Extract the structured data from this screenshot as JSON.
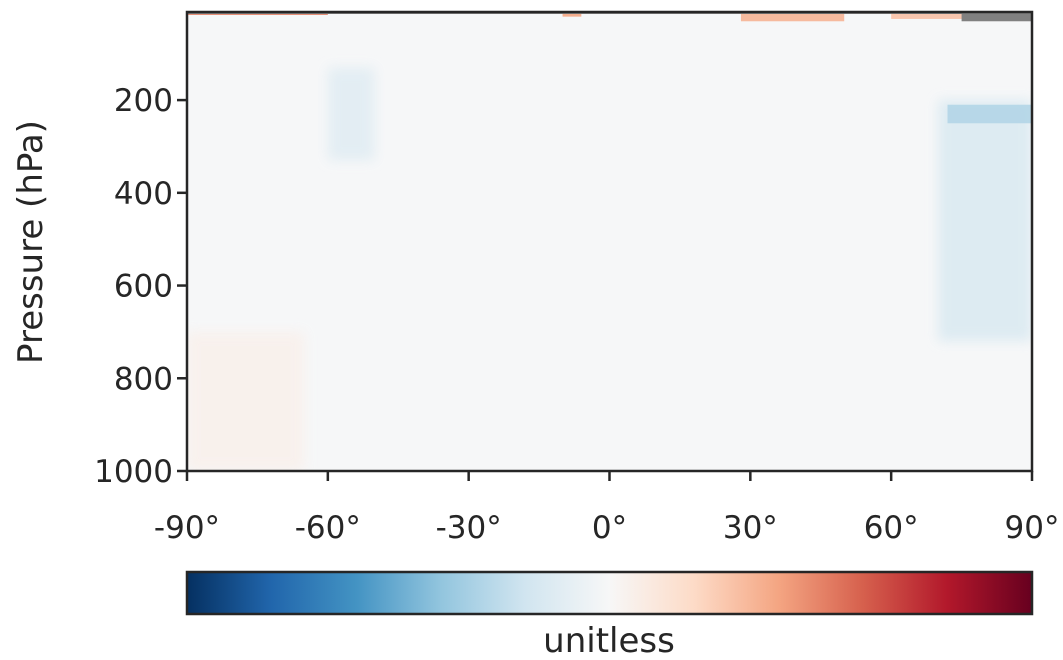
{
  "chart_data": {
    "type": "heatmap",
    "title": "",
    "xlabel": "",
    "ylabel": "Pressure (hPa)",
    "xlim": [
      -90,
      90
    ],
    "ylim": [
      1000,
      10
    ],
    "x_ticks": [
      -90,
      -60,
      -30,
      0,
      30,
      60,
      90
    ],
    "x_tick_labels": [
      "-90°",
      "-60°",
      "-30°",
      "0°",
      "30°",
      "60°",
      "90°"
    ],
    "y_ticks": [
      200,
      400,
      600,
      800,
      1000
    ],
    "y_tick_labels": [
      "200",
      "400",
      "600",
      "800",
      "1000"
    ],
    "colormap": "RdBu_r",
    "colorbar": {
      "label": "unitless",
      "orientation": "horizontal",
      "position": "bottom"
    },
    "missing_color": "#808080",
    "grid": false,
    "features": [
      {
        "lat": [
          -60,
          -50
        ],
        "p": [
          130,
          330
        ],
        "value": -0.12
      },
      {
        "lat": [
          -90,
          -65
        ],
        "p": [
          700,
          1000
        ],
        "value": 0.05
      },
      {
        "lat": [
          70,
          90
        ],
        "p": [
          200,
          720
        ],
        "value": -0.16
      },
      {
        "lat": [
          72,
          90
        ],
        "p": [
          210,
          250
        ],
        "value": -0.3
      },
      {
        "lat": [
          -90,
          -60
        ],
        "p": [
          10,
          14
        ],
        "value": 0.5
      },
      {
        "lat": [
          -10,
          -6
        ],
        "p": [
          10,
          20
        ],
        "value": 0.4
      },
      {
        "lat": [
          28,
          50
        ],
        "p": [
          10,
          30
        ],
        "value": 0.35
      },
      {
        "lat": [
          60,
          76
        ],
        "p": [
          10,
          25
        ],
        "value": 0.3
      },
      {
        "lat": [
          80,
          90
        ],
        "p": [
          10,
          25
        ],
        "value": 0.25
      }
    ],
    "missing_regions": [
      {
        "lat": [
          -90,
          90
        ],
        "p": [
          0,
          10
        ]
      },
      {
        "lat": [
          75,
          90
        ],
        "p": [
          0,
          30
        ]
      }
    ]
  }
}
